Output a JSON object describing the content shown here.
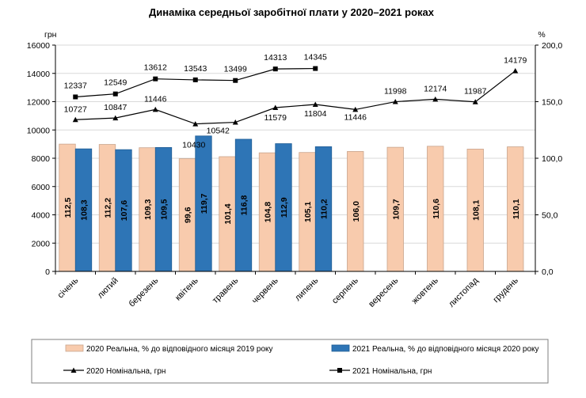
{
  "chart_data": {
    "type": "bar",
    "title": "Динаміка середньої заробітної плати у 2020–2021 роках",
    "y_left_unit": "грн",
    "y_right_unit": "%",
    "y_left_ticks": [
      "0",
      "2000",
      "4000",
      "6000",
      "8000",
      "10000",
      "12000",
      "14000",
      "16000"
    ],
    "y_right_ticks": [
      "0,0",
      "50,0",
      "100,0",
      "150,0",
      "200,0"
    ],
    "ylim_left": [
      0,
      16000
    ],
    "ylim_right": [
      0,
      200
    ],
    "categories": [
      "січень",
      "лютий",
      "березень",
      "квітень",
      "травень",
      "червень",
      "липень",
      "серпень",
      "вересень",
      "жовтень",
      "листопад",
      "грудень"
    ],
    "series": [
      {
        "name": "2020 Реальна, % до відповідного місяця 2019 року",
        "kind": "bar",
        "axis": "right",
        "color": "#F8CBAD",
        "values": [
          112.5,
          112.2,
          109.3,
          99.6,
          101.4,
          104.8,
          105.1,
          106.0,
          109.7,
          110.6,
          108.1,
          110.1
        ],
        "labels": [
          "112,5",
          "112,2",
          "109,3",
          "99,6",
          "101,4",
          "104,8",
          "105,1",
          "106,0",
          "109,7",
          "110,6",
          "108,1",
          "110,1"
        ]
      },
      {
        "name": "2021 Реальна, % до відповідного місяця 2020 року",
        "kind": "bar",
        "axis": "right",
        "color": "#2E75B6",
        "values": [
          108.3,
          107.6,
          109.5,
          119.7,
          116.8,
          112.9,
          110.2,
          null,
          null,
          null,
          null,
          null
        ],
        "labels": [
          "108,3",
          "107,6",
          "109,5",
          "119,7",
          "116,8",
          "112,9",
          "110,2",
          null,
          null,
          null,
          null,
          null
        ]
      },
      {
        "name": "2020 Номінальна, грн",
        "kind": "line",
        "axis": "left",
        "marker": "triangle",
        "values": [
          10727,
          10847,
          11446,
          10430,
          10542,
          11579,
          11804,
          11446,
          11998,
          12174,
          11987,
          14179
        ],
        "labels": [
          "10727",
          "10847",
          "11446",
          "10430",
          "10542",
          "11579",
          "11804",
          "11446",
          "11998",
          "12174",
          "11987",
          "14179"
        ]
      },
      {
        "name": "2021 Номінальна, грн",
        "kind": "line",
        "axis": "left",
        "marker": "square",
        "values": [
          12337,
          12549,
          13612,
          13543,
          13499,
          14313,
          14345,
          null,
          null,
          null,
          null,
          null
        ],
        "labels": [
          "12337",
          "12549",
          "13612",
          "13543",
          "13499",
          "14313",
          "14345",
          null,
          null,
          null,
          null,
          null
        ]
      }
    ]
  }
}
